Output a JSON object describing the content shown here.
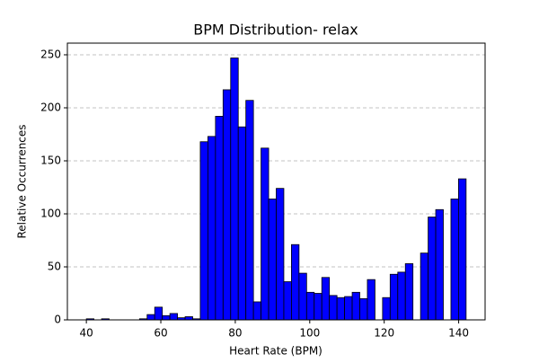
{
  "chart_data": {
    "type": "histogram",
    "title": "BPM Distribution- relax",
    "x_label": "Heart Rate (BPM)",
    "y_label": "Relative Occurrences",
    "bins": [
      40,
      42.04,
      44.08,
      46.12,
      48.16,
      50.2,
      52.24,
      54.28,
      56.32,
      58.36,
      60.4,
      62.44,
      64.48,
      66.52,
      68.56,
      70.6,
      72.64,
      74.68,
      76.72,
      78.76,
      80.8,
      82.84,
      84.88,
      86.92,
      88.96,
      91,
      93.04,
      95.08,
      97.12,
      99.16,
      101.2,
      103.24,
      105.28,
      107.32,
      109.36,
      111.4,
      113.44,
      115.48,
      117.52,
      119.56,
      121.6,
      123.64,
      125.68,
      127.72,
      129.76,
      131.8,
      133.84,
      135.88,
      137.92,
      139.96,
      142
    ],
    "values": [
      1,
      0,
      1,
      0,
      0,
      0,
      0,
      1,
      5,
      12,
      4,
      6,
      2,
      3,
      1,
      168,
      173,
      192,
      217,
      247,
      182,
      207,
      17,
      162,
      114,
      124,
      36,
      71,
      44,
      26,
      25,
      40,
      23,
      21,
      22,
      26,
      20,
      38,
      0,
      21,
      43,
      45,
      53,
      0,
      63,
      97,
      104,
      0,
      114,
      133
    ],
    "color": "#0000ff",
    "edgecolor": "#000000",
    "xlim": [
      34.9,
      147.1
    ],
    "xticks": [
      40,
      60,
      80,
      100,
      120,
      140
    ],
    "ylim": [
      0,
      261
    ],
    "yticks": [
      0,
      50,
      100,
      150,
      200,
      250
    ],
    "grid": true
  }
}
